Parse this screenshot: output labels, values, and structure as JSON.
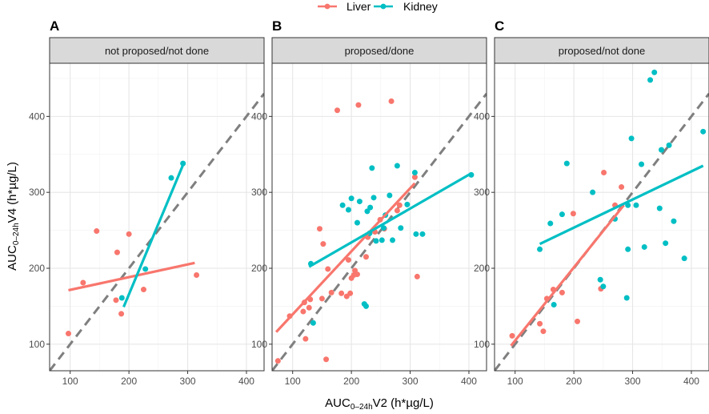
{
  "chart_data": {
    "type": "scatter",
    "x_title": "AUC0-24hV2 (h*µg/L)",
    "x_title_parts": {
      "base": "AUC",
      "sub": "0–24h",
      "rest": "V2 (h*µg/L)"
    },
    "y_title_parts": {
      "base": "AUC",
      "sub": "0–24h",
      "rest": "V4 (h*µg/L)"
    },
    "xlim": [
      65,
      430
    ],
    "ylim": [
      65,
      470
    ],
    "x_ticks": [
      100,
      200,
      300,
      400
    ],
    "y_ticks": [
      100,
      200,
      300,
      400
    ],
    "grid": true,
    "reference_line": "identity (y = x), dashed grey",
    "legend": {
      "placement": "top-center",
      "entries": [
        {
          "name": "Liver",
          "color": "#F8766D"
        },
        {
          "name": "Kidney",
          "color": "#00BFC4"
        }
      ]
    },
    "panels": [
      {
        "letter": "A",
        "strip": "not proposed/not done",
        "series": [
          {
            "name": "Liver",
            "color": "#F8766D",
            "points": [
              [
                97,
                114
              ],
              [
                122,
                181
              ],
              [
                145,
                249
              ],
              [
                180,
                221
              ],
              [
                178,
                158
              ],
              [
                187,
                140
              ],
              [
                200,
                245
              ],
              [
                225,
                172
              ],
              [
                315,
                191
              ]
            ],
            "fit": [
              [
                97,
                171
              ],
              [
                312,
                207
              ]
            ]
          },
          {
            "name": "Kidney",
            "color": "#00BFC4",
            "points": [
              [
                188,
                161
              ],
              [
                228,
                199
              ],
              [
                272,
                319
              ],
              [
                292,
                338
              ]
            ],
            "fit": [
              [
                191,
                149
              ],
              [
                292,
                336
              ]
            ]
          }
        ]
      },
      {
        "letter": "B",
        "strip": "proposed/done",
        "series": [
          {
            "name": "Liver",
            "color": "#F8766D",
            "points": [
              [
                75,
                78
              ],
              [
                95,
                137
              ],
              [
                118,
                143
              ],
              [
                120,
                155
              ],
              [
                122,
                107
              ],
              [
                128,
                148
              ],
              [
                130,
                159
              ],
              [
                146,
                252
              ],
              [
                150,
                160
              ],
              [
                152,
                232
              ],
              [
                157,
                80
              ],
              [
                160,
                199
              ],
              [
                166,
                168
              ],
              [
                176,
                408
              ],
              [
                183,
                167
              ],
              [
                192,
                163
              ],
              [
                195,
                211
              ],
              [
                200,
                187
              ],
              [
                198,
                167
              ],
              [
                204,
                191
              ],
              [
                206,
                197
              ],
              [
                210,
                192
              ],
              [
                212,
                415
              ],
              [
                225,
                215
              ],
              [
                228,
                241
              ],
              [
                240,
                248
              ],
              [
                249,
                264
              ],
              [
                256,
                252
              ],
              [
                268,
                420
              ],
              [
                278,
                276
              ],
              [
                282,
                283
              ],
              [
                308,
                320
              ],
              [
                312,
                189
              ]
            ],
            "fit": [
              [
                72,
                116
              ],
              [
                308,
                312
              ]
            ]
          },
          {
            "name": "Kidney",
            "color": "#00BFC4",
            "points": [
              [
                131,
                206
              ],
              [
                135,
                128
              ],
              [
                185,
                283
              ],
              [
                195,
                277
              ],
              [
                200,
                292
              ],
              [
                210,
                260
              ],
              [
                214,
                288
              ],
              [
                222,
                153
              ],
              [
                225,
                150
              ],
              [
                227,
                275
              ],
              [
                231,
                246
              ],
              [
                232,
                280
              ],
              [
                235,
                332
              ],
              [
                238,
                293
              ],
              [
                242,
                236
              ],
              [
                252,
                237
              ],
              [
                255,
                253
              ],
              [
                258,
                270
              ],
              [
                265,
                296
              ],
              [
                270,
                237
              ],
              [
                278,
                335
              ],
              [
                284,
                253
              ],
              [
                295,
                284
              ],
              [
                308,
                326
              ],
              [
                310,
                245
              ],
              [
                321,
                245
              ],
              [
                404,
                323
              ]
            ],
            "fit": [
              [
                128,
                202
              ],
              [
                404,
                325
              ]
            ]
          }
        ]
      },
      {
        "letter": "C",
        "strip": "proposed/not done",
        "series": [
          {
            "name": "Liver",
            "color": "#F8766D",
            "points": [
              [
                95,
                111
              ],
              [
                142,
                127
              ],
              [
                148,
                117
              ],
              [
                154,
                160
              ],
              [
                165,
                172
              ],
              [
                180,
                168
              ],
              [
                199,
                272
              ],
              [
                206,
                130
              ],
              [
                246,
                173
              ],
              [
                251,
                326
              ],
              [
                270,
                283
              ],
              [
                281,
                307
              ]
            ],
            "fit": [
              [
                93,
                98
              ],
              [
                285,
                283
              ]
            ]
          },
          {
            "name": "Kidney",
            "color": "#00BFC4",
            "points": [
              [
                142,
                225
              ],
              [
                160,
                259
              ],
              [
                166,
                152
              ],
              [
                180,
                271
              ],
              [
                188,
                338
              ],
              [
                232,
                300
              ],
              [
                245,
                185
              ],
              [
                250,
                176
              ],
              [
                270,
                265
              ],
              [
                290,
                161
              ],
              [
                292,
                283
              ],
              [
                292,
                225
              ],
              [
                298,
                371
              ],
              [
                306,
                283
              ],
              [
                315,
                337
              ],
              [
                320,
                228
              ],
              [
                330,
                448
              ],
              [
                337,
                458
              ],
              [
                346,
                279
              ],
              [
                349,
                356
              ],
              [
                356,
                233
              ],
              [
                362,
                362
              ],
              [
                370,
                262
              ],
              [
                388,
                213
              ],
              [
                420,
                380
              ]
            ],
            "fit": [
              [
                142,
                232
              ],
              [
                420,
                335
              ]
            ]
          }
        ]
      }
    ]
  }
}
